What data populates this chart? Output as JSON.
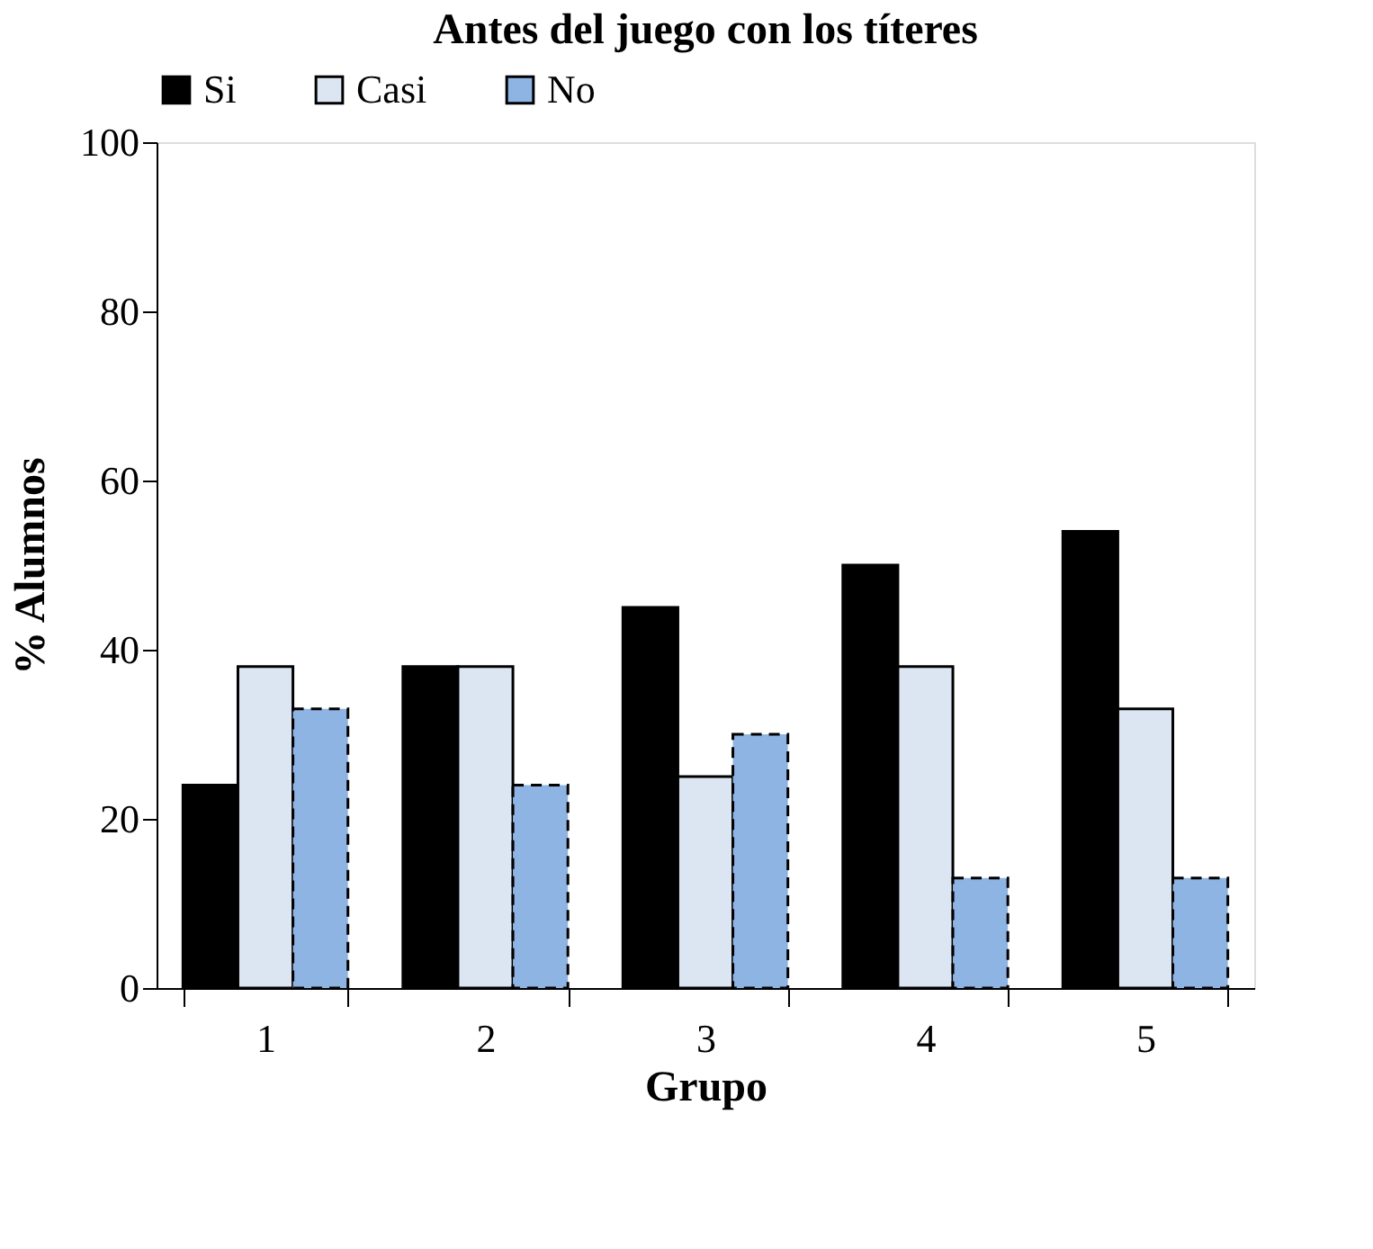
{
  "chart_data": {
    "type": "bar",
    "title": "Antes del juego con los títeres",
    "xlabel": "Grupo",
    "ylabel": "% Alumnos",
    "categories": [
      "1",
      "2",
      "3",
      "4",
      "5"
    ],
    "series": [
      {
        "name": "Si",
        "color": "#000000",
        "values": [
          24,
          38,
          45,
          50,
          54
        ],
        "line_style": "solid"
      },
      {
        "name": "Casi",
        "color": "#dce6f2",
        "values": [
          38,
          38,
          25,
          38,
          33
        ],
        "line_style": "solid"
      },
      {
        "name": "No",
        "color": "#8eb4e3",
        "values": [
          33,
          24,
          30,
          13,
          13
        ],
        "line_style": "dashed"
      }
    ],
    "ylim": [
      0,
      100
    ],
    "yticks": [
      0,
      20,
      40,
      60,
      80,
      100
    ],
    "grid": false,
    "legend": "top left"
  }
}
